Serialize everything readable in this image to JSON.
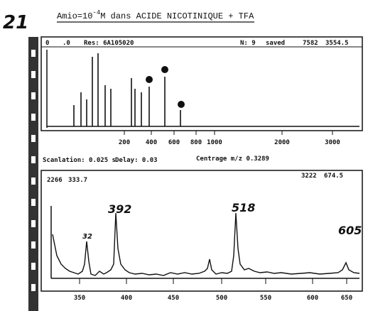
{
  "page_number": "21",
  "title": {
    "prefix": "Amio=10",
    "exponent": "-4",
    "suffix": "M dans ACIDE NICOTINIQUE + TFA"
  },
  "top_panel": {
    "header": [
      "0",
      ".0",
      "Res: 6A105020",
      "N: 9",
      "saved",
      "7582",
      "3554.5"
    ],
    "x_ticks": [
      "200",
      "400",
      "600",
      "800",
      "1000",
      "2000",
      "3000"
    ]
  },
  "info_line": [
    "Scanlation: 0.025 s",
    "Delay: 0.03",
    "Centrage m/z 0.3289"
  ],
  "bottom_panel": {
    "header": [
      "2266",
      "333.7",
      "3222",
      "674.5"
    ],
    "peak_labels": [
      "392",
      "518",
      "605",
      "32"
    ],
    "x_ticks": [
      "350",
      "400",
      "450",
      "500",
      "550",
      "600",
      "650"
    ]
  }
}
